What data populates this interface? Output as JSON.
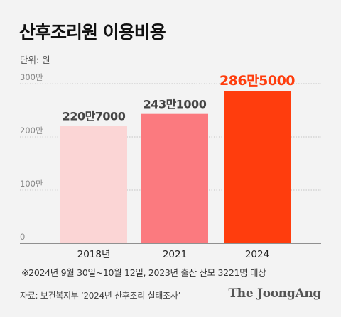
{
  "header": {
    "title": "산후조리원 이용비용",
    "unit": "단위: 원"
  },
  "chart_data": {
    "type": "bar",
    "categories": [
      "2018년",
      "2021",
      "2024"
    ],
    "values": [
      2207000,
      2431000,
      2865000
    ],
    "value_labels": [
      "220만7000",
      "243만1000",
      "286만5000"
    ],
    "y_ticks": [
      {
        "value": 0,
        "label": "0"
      },
      {
        "value": 1000000,
        "label": "100만"
      },
      {
        "value": 2000000,
        "label": "200만"
      },
      {
        "value": 3000000,
        "label": "300만"
      }
    ],
    "ylim": [
      0,
      3000000
    ],
    "grid": true,
    "colors": [
      "#fbd5d5",
      "#fb7a7f",
      "#ff3d0d"
    ],
    "label_colors": [
      "#444444",
      "#444444",
      "#ff3d0d"
    ]
  },
  "footer": {
    "footnote": "※2024년 9월 30일~10월 12일, 2023년 출산 산모 3221명 대상",
    "source": "자료: 보건복지부 ‘2024년 산후조리 실태조사’",
    "brand": "The JoongAng"
  }
}
